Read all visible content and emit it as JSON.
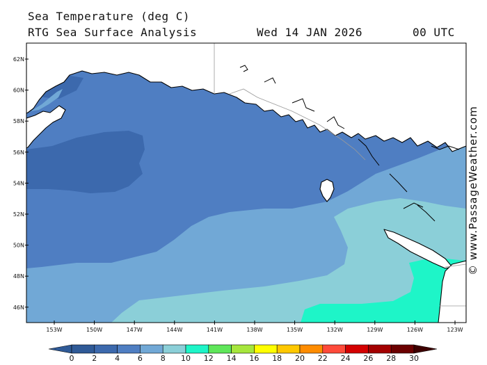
{
  "header": {
    "title": "Sea Temperature (deg C)",
    "subtitle": "RTG Sea Surface Analysis",
    "date": "Wed 14 JAN 2026",
    "time": "00 UTC"
  },
  "credit": "© www.PassageWeather.com",
  "map": {
    "lat_labels": [
      "62N",
      "60N",
      "58N",
      "56N",
      "54N",
      "52N",
      "50N",
      "48N",
      "46N"
    ],
    "lon_labels": [
      "153W",
      "150W",
      "147W",
      "144W",
      "141W",
      "138W",
      "135W",
      "132W",
      "129W",
      "126W",
      "123W"
    ],
    "colors": {
      "ocean_4_6": "#4f7ec2",
      "ocean_2_4": "#3c69ad",
      "ocean_6_8": "#71a8d6",
      "ocean_8_10": "#8bcfd8",
      "ocean_10_12": "#1ef5c8",
      "land": "#ffffff",
      "coast": "#000000"
    }
  },
  "colorbar": {
    "labels": [
      "0",
      "2",
      "4",
      "6",
      "8",
      "10",
      "12",
      "14",
      "16",
      "18",
      "20",
      "22",
      "24",
      "26",
      "28",
      "30"
    ],
    "colors": [
      "#2f5a97",
      "#3c69ad",
      "#4f7ec2",
      "#71a8d6",
      "#8bcfd8",
      "#1ef5c8",
      "#5fe65a",
      "#a6e63c",
      "#ffff00",
      "#ffc800",
      "#ff8c00",
      "#ff4a3a",
      "#d40000",
      "#a30000",
      "#6b0000"
    ]
  }
}
